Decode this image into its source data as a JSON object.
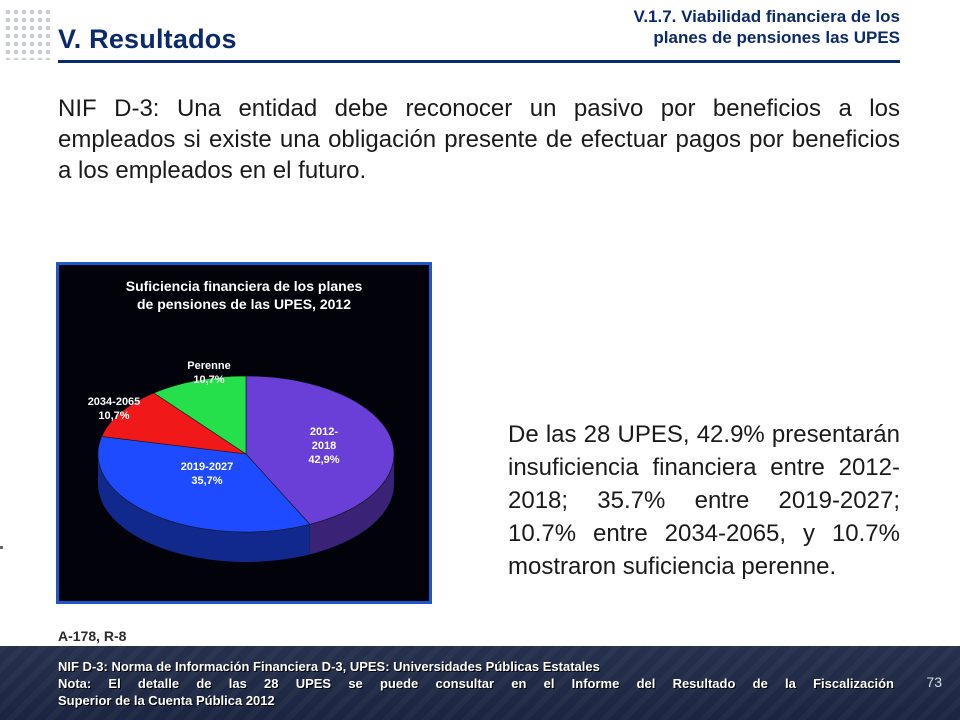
{
  "header": {
    "section_title": "V. Resultados",
    "subtitle_line1": "V.1.7. Viabilidad financiera de los",
    "subtitle_line2": "planes de pensiones las UPES"
  },
  "intro_text": "NIF D-3: Una entidad debe reconocer un pasivo por beneficios a los empleados si existe una obligación presente de efectuar pagos por beneficios a los empleados en el futuro.",
  "side_text": "De las 28 UPES, 42.9% presentarán insuficiencia financiera entre 2012-2018; 35.7% entre 2019-2027; 10.7% entre 2034-2065, y 10.7% mostraron suficiencia perenne.",
  "reference": "A-178, R-8",
  "footnotes": {
    "line1": "NIF D-3: Norma de Información  Financiera D-3, UPES: Universidades Públicas Estatales",
    "line2": "Nota: El detalle de las 28 UPES se puede consultar en el Informe del Resultado de la Fiscalización",
    "line3": "Superior de la Cuenta Pública 2012"
  },
  "page_number": "73",
  "colors": {
    "title_blue": "#0b2a6b",
    "chart_border": "#1f56c8",
    "chart_bg": "#02020a"
  },
  "chart_data": {
    "type": "pie",
    "style": "3d",
    "title_line1": "Suficiencia financiera de los planes",
    "title_line2": "de pensiones de las UPES, 2012",
    "slices": [
      {
        "label_line1": "2012-",
        "label_line2": "2018",
        "value_label": "42,9%",
        "value": 42.9,
        "color": "#6a3fd8"
      },
      {
        "label_line1": "2019-2027",
        "label_line2": "",
        "value_label": "35,7%",
        "value": 35.7,
        "color": "#1e4bff"
      },
      {
        "label_line1": "2034-2065",
        "label_line2": "",
        "value_label": "10,7%",
        "value": 10.7,
        "color": "#f01818"
      },
      {
        "label_line1": "Perenne",
        "label_line2": "",
        "value_label": "10,7%",
        "value": 10.7,
        "color": "#25e04a"
      }
    ]
  }
}
